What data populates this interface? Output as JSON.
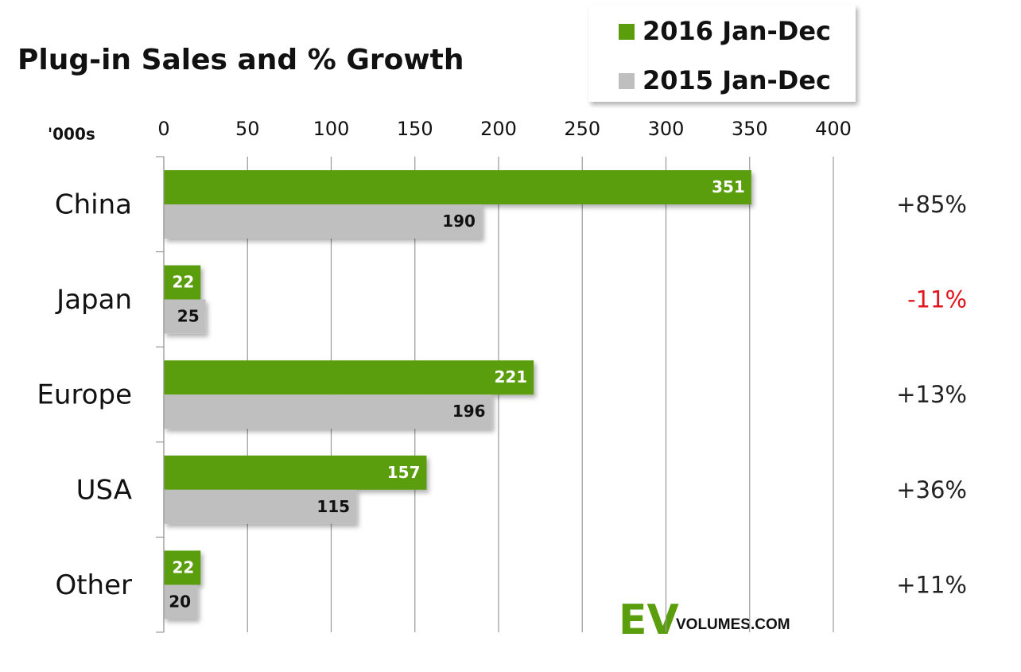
{
  "chart_data": {
    "type": "hbar",
    "title": "Plug-in Sales and % Growth",
    "axis_unit": "'000s",
    "categories": [
      "China",
      "Japan",
      "Europe",
      "USA",
      "Other"
    ],
    "series": [
      {
        "name": "2016 Jan-Dec",
        "color": "#5a9e0e",
        "label_color": "#ffffff",
        "values": [
          351,
          22,
          221,
          157,
          22
        ]
      },
      {
        "name": "2015 Jan-Dec",
        "color": "#bfbfbf",
        "label_color": "#111111",
        "values": [
          190,
          25,
          196,
          115,
          20
        ]
      }
    ],
    "growth": {
      "values": [
        85,
        -11,
        13,
        36,
        11
      ],
      "value_labels": [
        "+85%",
        "-11%",
        "+13%",
        "+36%",
        "+11%"
      ],
      "positive_color": "#222222",
      "negative_color": "#e0141c"
    },
    "xlim": [
      0,
      400
    ],
    "xticks": [
      0,
      50,
      100,
      150,
      200,
      250,
      300,
      350,
      400
    ],
    "grid": true,
    "legend": "top-right",
    "logo": {
      "mark": "EV",
      "text": "VOLUMES.COM"
    }
  }
}
